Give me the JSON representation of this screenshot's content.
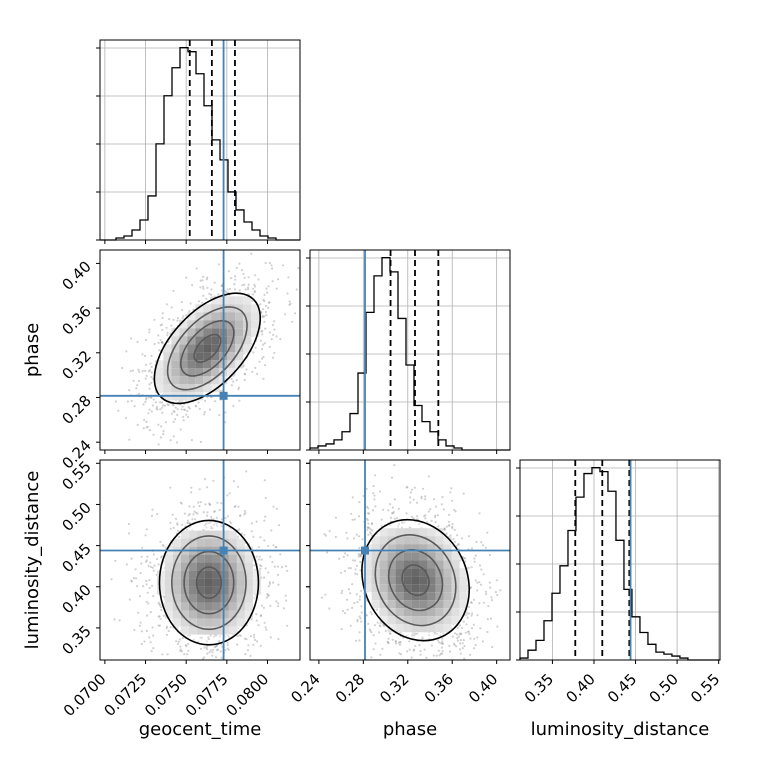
{
  "chart_data": {
    "type": "corner",
    "parameters": [
      "geocent_time",
      "phase",
      "luminosity_distance"
    ],
    "truths": {
      "geocent_time": 0.0773,
      "phase": 0.2815,
      "luminosity_distance": 0.444
    },
    "colors": {
      "truth": "#4682b4",
      "hist": "#000000",
      "grid": "#b0b0b0",
      "quantile": "#000000"
    },
    "grid": true,
    "diagonal": [
      {
        "param": "geocent_time",
        "xlim": [
          0.0697,
          0.082
        ],
        "xticks": [
          0.07,
          0.0725,
          0.075,
          0.0775,
          0.08
        ],
        "xtick_labels": [
          "0.0700",
          "0.0725",
          "0.0750",
          "0.0775",
          "0.0800"
        ],
        "quantiles": [
          0.07522,
          0.07658,
          0.078
        ],
        "bins": {
          "x0": 0.0697,
          "width": 0.000492,
          "counts": [
            0,
            0,
            1,
            2,
            5,
            10,
            22,
            48,
            72,
            86,
            96,
            94,
            83,
            67,
            50,
            40,
            24,
            15,
            9,
            5,
            2,
            1,
            0,
            0,
            0
          ]
        }
      },
      {
        "param": "phase",
        "xlim": [
          0.232,
          0.412
        ],
        "xticks": [
          0.24,
          0.28,
          0.32,
          0.36,
          0.4
        ],
        "xtick_labels": [
          "0.24",
          "0.28",
          "0.32",
          "0.36",
          "0.40"
        ],
        "quantiles": [
          0.3045,
          0.3265,
          0.3475
        ],
        "bins": {
          "x0": 0.232,
          "width": 0.0072,
          "counts": [
            1,
            2,
            3,
            5,
            9,
            18,
            38,
            68,
            86,
            95,
            88,
            65,
            42,
            22,
            14,
            9,
            5,
            2,
            1,
            0,
            0,
            0,
            0,
            0,
            0
          ]
        }
      },
      {
        "param": "luminosity_distance",
        "xlim": [
          0.311,
          0.5516
        ],
        "xticks": [
          0.35,
          0.4,
          0.45,
          0.5,
          0.55
        ],
        "xtick_labels": [
          "0.35",
          "0.40",
          "0.45",
          "0.50",
          "0.55"
        ],
        "quantiles": [
          0.3775,
          0.41,
          0.4425
        ],
        "bins": {
          "x0": 0.311,
          "width": 0.00962,
          "counts": [
            1,
            5,
            10,
            20,
            34,
            48,
            66,
            83,
            95,
            98,
            96,
            86,
            61,
            36,
            22,
            14,
            8,
            4,
            3,
            2,
            1,
            0,
            0,
            0,
            0
          ]
        }
      }
    ],
    "off_diagonal": [
      {
        "x": "geocent_time",
        "y": "phase",
        "xlim": [
          0.0697,
          0.082
        ],
        "ylim": [
          0.233,
          0.412
        ],
        "yticks": [
          0.24,
          0.28,
          0.32,
          0.36,
          0.4
        ],
        "ytick_labels": [
          "0.24",
          "0.28",
          "0.32",
          "0.36",
          "0.40"
        ],
        "mode": [
          0.0763,
          0.324
        ],
        "spread": [
          0.00155,
          0.0235
        ],
        "tilt": 0.55
      },
      {
        "x": "geocent_time",
        "y": "luminosity_distance",
        "xlim": [
          0.0697,
          0.082
        ],
        "ylim": [
          0.311,
          0.554
        ],
        "yticks": [
          0.35,
          0.4,
          0.45,
          0.5,
          0.55
        ],
        "ytick_labels": [
          "0.35",
          "0.40",
          "0.45",
          "0.50",
          "0.55"
        ],
        "mode": [
          0.0764,
          0.405
        ],
        "spread": [
          0.00145,
          0.036
        ],
        "tilt": 0.0
      },
      {
        "x": "phase",
        "y": "luminosity_distance",
        "xlim": [
          0.232,
          0.412
        ],
        "ylim": [
          0.311,
          0.554
        ],
        "mode": [
          0.327,
          0.408
        ],
        "spread": [
          0.023,
          0.035
        ],
        "tilt": -0.15
      }
    ],
    "xlabels": [
      "geocent_time",
      "phase",
      "luminosity_distance"
    ],
    "ylabels": [
      "phase",
      "luminosity_distance"
    ]
  }
}
